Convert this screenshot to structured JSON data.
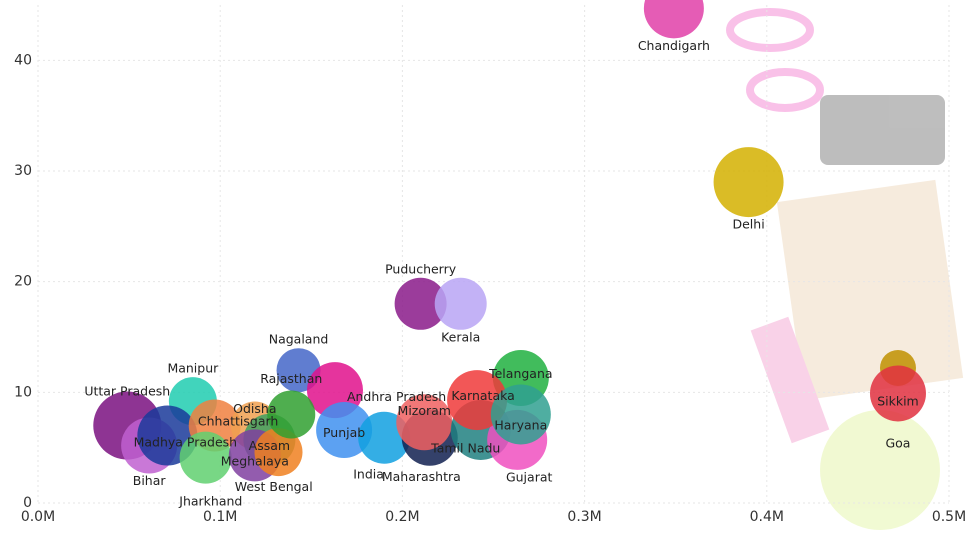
{
  "chart_data": {
    "type": "bubble",
    "xlim": [
      0,
      500000
    ],
    "ylim": [
      0,
      45
    ],
    "xticks": [
      {
        "value": 0,
        "label": "0.0M"
      },
      {
        "value": 100000,
        "label": "0.1M"
      },
      {
        "value": 200000,
        "label": "0.2M"
      },
      {
        "value": 300000,
        "label": "0.3M"
      },
      {
        "value": 400000,
        "label": "0.4M"
      },
      {
        "value": 500000,
        "label": "0.5M"
      }
    ],
    "yticks": [
      0,
      10,
      20,
      30,
      40
    ],
    "grid": true,
    "points": [
      {
        "name": "Chandigarh",
        "x": 349000,
        "y": 44.7,
        "size": 30,
        "color": "#e040a8"
      },
      {
        "name": "Delhi",
        "x": 390000,
        "y": 29,
        "size": 35,
        "color": "#d4b000"
      },
      {
        "name": "Puducherry",
        "x": 210000,
        "y": 18,
        "size": 26,
        "color": "#8a1a8a"
      },
      {
        "name": "Kerala",
        "x": 232000,
        "y": 18,
        "size": 26,
        "color": "#b8a4f4"
      },
      {
        "name": "Nagaland",
        "x": 143000,
        "y": 12,
        "size": 22,
        "color": "#4466c8"
      },
      {
        "name": "Andhra Pradesh",
        "x": 163000,
        "y": 10.2,
        "size": 28,
        "color": "#e0108c"
      },
      {
        "name": "Manipur",
        "x": 85000,
        "y": 9.2,
        "size": 24,
        "color": "#20ccb0"
      },
      {
        "name": "Uttar Pradesh",
        "x": 49000,
        "y": 7,
        "size": 34,
        "color": "#7a1080"
      },
      {
        "name": "Bihar",
        "x": 61000,
        "y": 5.2,
        "size": 28,
        "color": "#c060d0"
      },
      {
        "name": "Madhya Pradesh",
        "x": 71000,
        "y": 6.1,
        "size": 30,
        "color": "#1a3a9a"
      },
      {
        "name": "Chhattisgarh",
        "x": 97000,
        "y": 7,
        "size": 26,
        "color": "#f08040"
      },
      {
        "name": "Jharkhand",
        "x": 92000,
        "y": 4.1,
        "size": 26,
        "color": "#60d070"
      },
      {
        "name": "Odisha",
        "x": 119000,
        "y": 7,
        "size": 24,
        "color": "#f0a050"
      },
      {
        "name": "Assam",
        "x": 127000,
        "y": 5.7,
        "size": 26,
        "color": "#40a060"
      },
      {
        "name": "Meghalaya",
        "x": 119000,
        "y": 4.3,
        "size": 26,
        "color": "#8040a0"
      },
      {
        "name": "West Bengal",
        "x": 132000,
        "y": 4.6,
        "size": 24,
        "color": "#f08020"
      },
      {
        "name": "Rajasthan",
        "x": 139000,
        "y": 8,
        "size": 24,
        "color": "#30a030"
      },
      {
        "name": "Punjab",
        "x": 168000,
        "y": 6.6,
        "size": 28,
        "color": "#4090f0"
      },
      {
        "name": "India",
        "x": 190000,
        "y": 5.9,
        "size": 26,
        "color": "#10a0e0"
      },
      {
        "name": "Maharashtra",
        "x": 215000,
        "y": 5.9,
        "size": 28,
        "color": "#102050"
      },
      {
        "name": "Mizoram",
        "x": 212000,
        "y": 7.3,
        "size": 28,
        "color": "#f06060"
      },
      {
        "name": "Tamil Nadu",
        "x": 243000,
        "y": 6.6,
        "size": 30,
        "color": "#208080"
      },
      {
        "name": "Gujarat",
        "x": 263000,
        "y": 5.7,
        "size": 30,
        "color": "#f050c0"
      },
      {
        "name": "Telangana",
        "x": 265000,
        "y": 11.3,
        "size": 28,
        "color": "#20b040"
      },
      {
        "name": "Karnataka",
        "x": 241000,
        "y": 9.3,
        "size": 30,
        "color": "#f03a3a"
      },
      {
        "name": "Haryana",
        "x": 265000,
        "y": 8,
        "size": 30,
        "color": "#30a090"
      },
      {
        "name": "Sikkim",
        "x": 472000,
        "y": 12.2,
        "size": 18,
        "color": "#c09000"
      },
      {
        "name": "Goa",
        "x": 472000,
        "y": 9.9,
        "size": 28,
        "color": "#e03040"
      }
    ]
  }
}
